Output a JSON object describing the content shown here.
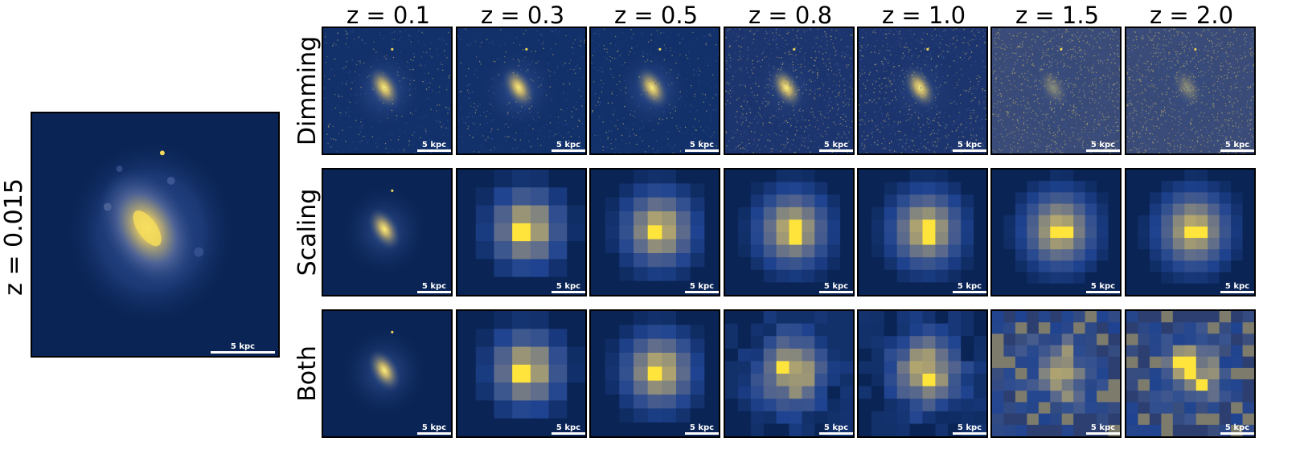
{
  "main": {
    "redshift_label": "z = 0.015",
    "scalebar_label": "5 kpc"
  },
  "columns": [
    "z = 0.1",
    "z = 0.3",
    "z = 0.5",
    "z = 0.8",
    "z = 1.0",
    "z = 1.5",
    "z = 2.0"
  ],
  "rows": [
    "Dimming",
    "Scaling",
    "Both"
  ],
  "scalebar_label": "5 kpc",
  "colors": {
    "background": "#0a2455",
    "disk": "#21407c",
    "bright": "#7f8a8e",
    "core": "#ffe43c",
    "noise": "#b8ac6a"
  },
  "panel_styles": {
    "Dimming": [
      "smooth-light-noise",
      "smooth-light-noise",
      "smooth-noise",
      "smooth-more-noise",
      "smooth-more-noise",
      "noise-dominated",
      "noise-dominated"
    ],
    "Scaling": [
      "smooth",
      "pixel-7",
      "pixel-9",
      "pixel-10",
      "pixel-10",
      "pixel-11",
      "pixel-11"
    ],
    "Both": [
      "smooth",
      "pixel-7",
      "pixel-9",
      "pixel-10-noisy",
      "pixel-10-noisy",
      "pixel-11-very-noisy",
      "pixel-11-very-noisy"
    ]
  }
}
